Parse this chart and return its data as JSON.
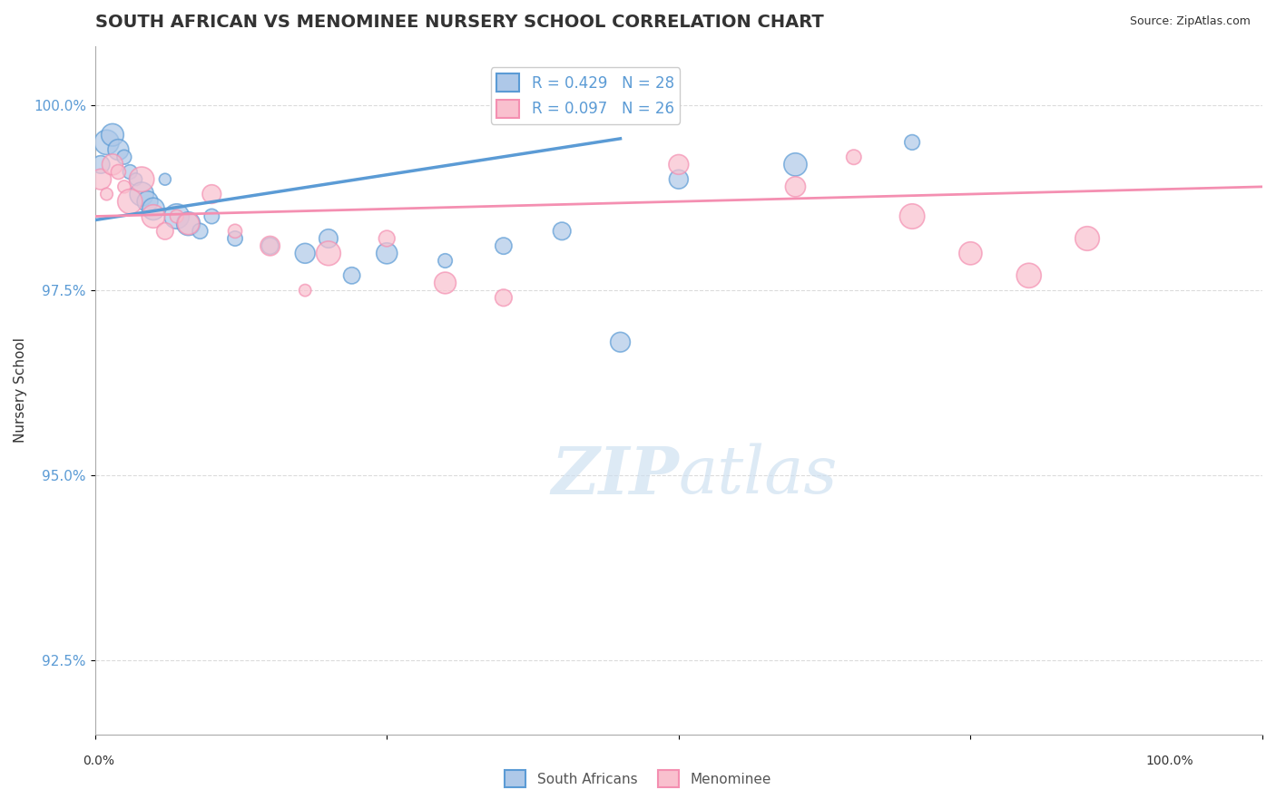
{
  "title": "SOUTH AFRICAN VS MENOMINEE NURSERY SCHOOL CORRELATION CHART",
  "source": "Source: ZipAtlas.com",
  "ylabel": "Nursery School",
  "ytick_values": [
    92.5,
    95.0,
    97.5,
    100.0
  ],
  "legend_label1": "South Africans",
  "legend_label2": "Menominee",
  "blue_color": "#5b9bd5",
  "pink_color": "#f48fb1",
  "blue_fill": "#aec8e8",
  "pink_fill": "#f9c0ce",
  "watermark_zip": "ZIP",
  "watermark_atlas": "atlas",
  "background": "#ffffff",
  "blue_r": 0.429,
  "blue_n": 28,
  "pink_r": 0.097,
  "pink_n": 26,
  "blue_points_x": [
    0.5,
    1.0,
    1.5,
    2.0,
    2.5,
    3.0,
    3.5,
    4.0,
    4.5,
    5.0,
    6.0,
    7.0,
    8.0,
    9.0,
    10.0,
    12.0,
    15.0,
    18.0,
    20.0,
    22.0,
    25.0,
    30.0,
    35.0,
    40.0,
    50.0,
    60.0,
    70.0,
    45.0
  ],
  "blue_points_y": [
    99.2,
    99.5,
    99.6,
    99.4,
    99.3,
    99.1,
    99.0,
    98.8,
    98.7,
    98.6,
    99.0,
    98.5,
    98.4,
    98.3,
    98.5,
    98.2,
    98.1,
    98.0,
    98.2,
    97.7,
    98.0,
    97.9,
    98.1,
    98.3,
    99.0,
    99.2,
    99.5,
    96.8
  ],
  "pink_points_x": [
    0.5,
    1.0,
    1.5,
    2.0,
    2.5,
    3.0,
    4.0,
    5.0,
    6.0,
    7.0,
    8.0,
    10.0,
    12.0,
    15.0,
    18.0,
    20.0,
    25.0,
    30.0,
    35.0,
    50.0,
    60.0,
    65.0,
    70.0,
    75.0,
    80.0,
    85.0
  ],
  "pink_points_y": [
    99.0,
    98.8,
    99.2,
    99.1,
    98.9,
    98.7,
    99.0,
    98.5,
    98.3,
    98.5,
    98.4,
    98.8,
    98.3,
    98.1,
    97.5,
    98.0,
    98.2,
    97.6,
    97.4,
    99.2,
    98.9,
    99.3,
    98.5,
    98.0,
    97.7,
    98.2
  ],
  "blue_trend_x": [
    0,
    45
  ],
  "blue_trend_y": [
    98.45,
    99.55
  ],
  "pink_trend_x": [
    0,
    100
  ],
  "pink_trend_y": [
    98.5,
    98.9
  ],
  "ylim_min": 91.5,
  "ylim_max": 100.8,
  "xlim_min": 0,
  "xlim_max": 100
}
